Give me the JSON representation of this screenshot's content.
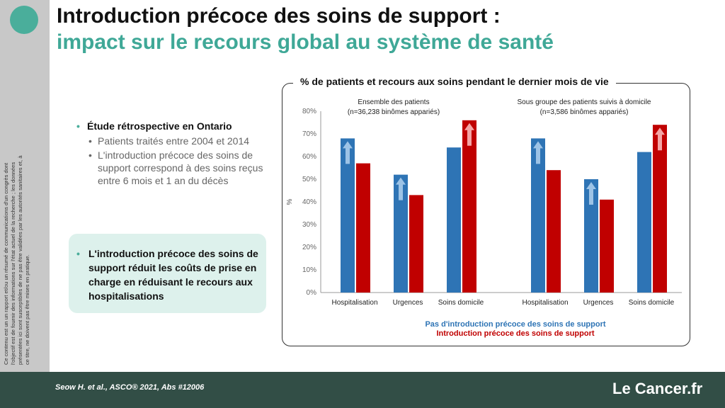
{
  "slide": {
    "title_line1": "Introduction précoce des soins de support :",
    "title_line2": "impact sur le recours global au système de santé",
    "side_note": "Ce contenu est un un rapport et/ou un résumé de communications d'un congrès dont l'objectif est de fournir des informations sur l'état actuel de la recherche ; les données présentées ici sont susceptibles de ne pas être validées par les autorités sanitaires et, à ce titre, ne doivent pas être mises en pratique.",
    "bullet_main": "Étude rétrospective en Ontario",
    "bullet_sub": [
      "Patients traités entre 2004 et 2014",
      "L'introduction précoce des soins de support correspond à des soins reçus entre 6 mois et 1 an du décès"
    ],
    "highlight": "L'introduction précoce des soins de support réduit les coûts de prise en charge en réduisant le recours aux hospitalisations",
    "citation": "Seow H. et al., ASCO® 2021, Abs #12006",
    "logo": "Le Cancer.fr",
    "colors": {
      "teal": "#3fa897",
      "blue": "#2e74b5",
      "red": "#c00000",
      "footer": "#324e46"
    }
  },
  "chart_data": {
    "type": "bar",
    "title": "% de patients et recours aux soins pendant le dernier mois de vie",
    "ylabel": "%",
    "ylim": [
      0,
      80
    ],
    "yticks": [
      "0%",
      "10%",
      "20%",
      "30%",
      "40%",
      "50%",
      "60%",
      "70%",
      "80%"
    ],
    "groups": [
      {
        "label_line1": "Ensemble des patients",
        "label_line2": "(n=36,238 binômes appariés)",
        "categories": [
          "Hospitalisation",
          "Urgences",
          "Soins domicile"
        ],
        "no_intro": [
          68,
          52,
          64
        ],
        "intro": [
          57,
          43,
          76
        ]
      },
      {
        "label_line1": "Sous groupe des patients suivis à domicile",
        "label_line2": "(n=3,586 binômes appariés)",
        "categories": [
          "Hospitalisation",
          "Urgences",
          "Soins domicile"
        ],
        "no_intro": [
          68,
          50,
          62
        ],
        "intro": [
          54,
          41,
          74
        ]
      }
    ],
    "series": [
      {
        "name": "Pas d'introduction précoce des soins de support",
        "color": "#2e74b5"
      },
      {
        "name": "Introduction précoce des soins de support",
        "color": "#c00000"
      }
    ]
  }
}
